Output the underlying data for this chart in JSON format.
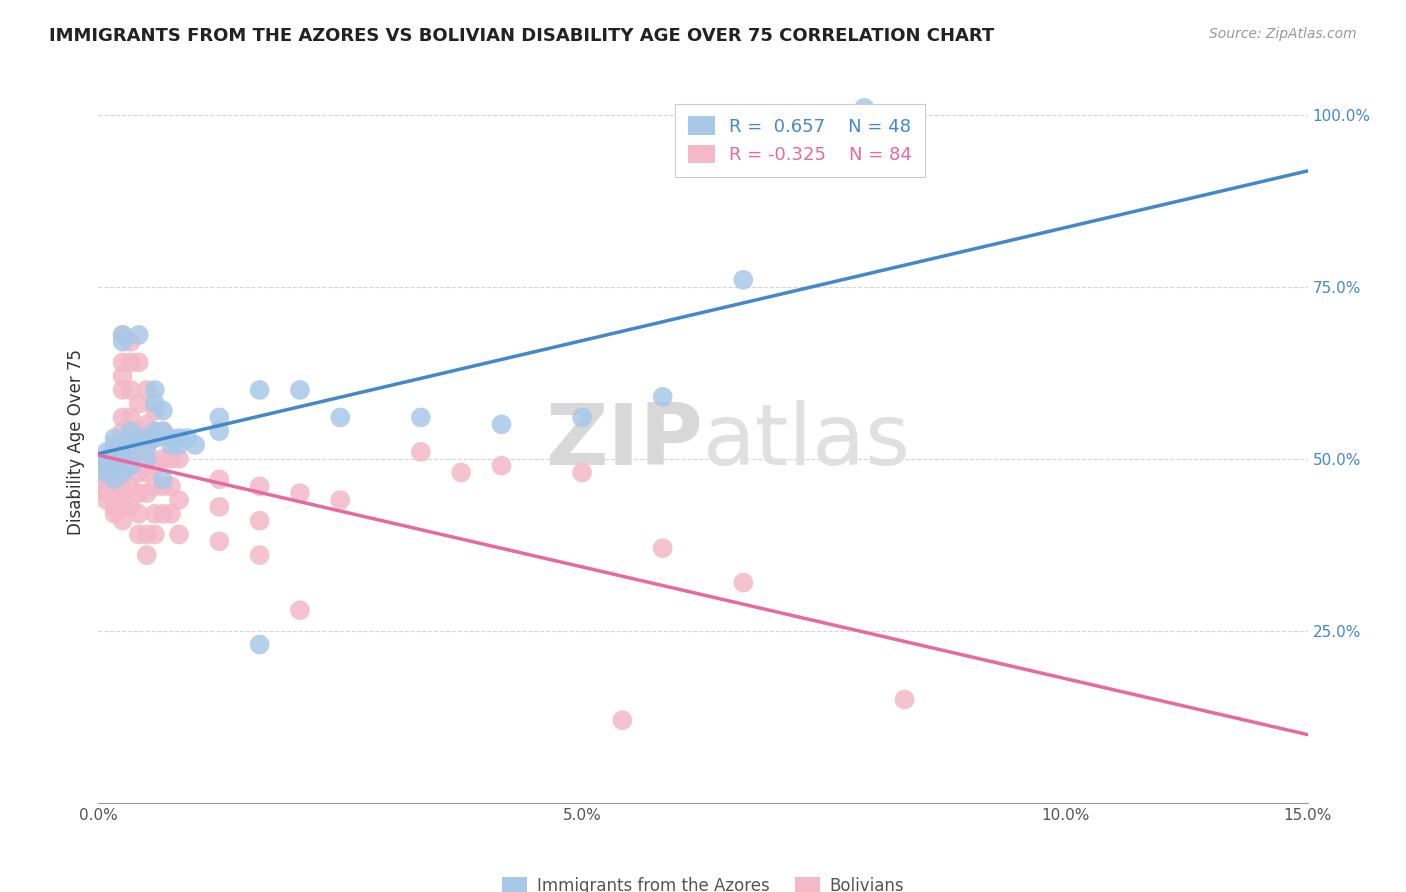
{
  "title": "IMMIGRANTS FROM THE AZORES VS BOLIVIAN DISABILITY AGE OVER 75 CORRELATION CHART",
  "source": "Source: ZipAtlas.com",
  "ylabel": "Disability Age Over 75",
  "legend_label1": "Immigrants from the Azores",
  "legend_label2": "Bolivians",
  "R1": 0.657,
  "N1": 48,
  "R2": -0.325,
  "N2": 84,
  "watermark_zip": "ZIP",
  "watermark_atlas": "atlas",
  "blue_color": "#a8c8e8",
  "pink_color": "#f4b8c8",
  "blue_line_color": "#4488cc",
  "pink_line_color": "#e868a0",
  "blue_scatter": [
    [
      0.001,
      0.5
    ],
    [
      0.001,
      0.51
    ],
    [
      0.001,
      0.49
    ],
    [
      0.001,
      0.48
    ],
    [
      0.002,
      0.52
    ],
    [
      0.002,
      0.53
    ],
    [
      0.002,
      0.5
    ],
    [
      0.002,
      0.49
    ],
    [
      0.002,
      0.47
    ],
    [
      0.003,
      0.52
    ],
    [
      0.003,
      0.51
    ],
    [
      0.003,
      0.68
    ],
    [
      0.003,
      0.67
    ],
    [
      0.003,
      0.48
    ],
    [
      0.004,
      0.54
    ],
    [
      0.004,
      0.53
    ],
    [
      0.004,
      0.51
    ],
    [
      0.004,
      0.49
    ],
    [
      0.005,
      0.68
    ],
    [
      0.005,
      0.53
    ],
    [
      0.006,
      0.53
    ],
    [
      0.006,
      0.52
    ],
    [
      0.006,
      0.5
    ],
    [
      0.007,
      0.6
    ],
    [
      0.007,
      0.58
    ],
    [
      0.007,
      0.54
    ],
    [
      0.007,
      0.53
    ],
    [
      0.008,
      0.57
    ],
    [
      0.008,
      0.54
    ],
    [
      0.008,
      0.47
    ],
    [
      0.009,
      0.53
    ],
    [
      0.009,
      0.52
    ],
    [
      0.01,
      0.53
    ],
    [
      0.01,
      0.52
    ],
    [
      0.011,
      0.53
    ],
    [
      0.012,
      0.52
    ],
    [
      0.015,
      0.56
    ],
    [
      0.015,
      0.54
    ],
    [
      0.02,
      0.6
    ],
    [
      0.025,
      0.6
    ],
    [
      0.03,
      0.56
    ],
    [
      0.04,
      0.56
    ],
    [
      0.05,
      0.55
    ],
    [
      0.06,
      0.56
    ],
    [
      0.07,
      0.59
    ],
    [
      0.08,
      0.76
    ],
    [
      0.02,
      0.23
    ],
    [
      0.095,
      1.01
    ]
  ],
  "pink_scatter": [
    [
      0.001,
      0.5
    ],
    [
      0.001,
      0.49
    ],
    [
      0.001,
      0.48
    ],
    [
      0.001,
      0.47
    ],
    [
      0.001,
      0.46
    ],
    [
      0.001,
      0.45
    ],
    [
      0.001,
      0.44
    ],
    [
      0.002,
      0.52
    ],
    [
      0.002,
      0.51
    ],
    [
      0.002,
      0.5
    ],
    [
      0.002,
      0.49
    ],
    [
      0.002,
      0.47
    ],
    [
      0.002,
      0.45
    ],
    [
      0.002,
      0.44
    ],
    [
      0.002,
      0.43
    ],
    [
      0.002,
      0.42
    ],
    [
      0.003,
      0.68
    ],
    [
      0.003,
      0.64
    ],
    [
      0.003,
      0.62
    ],
    [
      0.003,
      0.6
    ],
    [
      0.003,
      0.56
    ],
    [
      0.003,
      0.54
    ],
    [
      0.003,
      0.51
    ],
    [
      0.003,
      0.49
    ],
    [
      0.003,
      0.47
    ],
    [
      0.003,
      0.45
    ],
    [
      0.003,
      0.43
    ],
    [
      0.003,
      0.41
    ],
    [
      0.004,
      0.67
    ],
    [
      0.004,
      0.64
    ],
    [
      0.004,
      0.6
    ],
    [
      0.004,
      0.56
    ],
    [
      0.004,
      0.52
    ],
    [
      0.004,
      0.49
    ],
    [
      0.004,
      0.46
    ],
    [
      0.004,
      0.43
    ],
    [
      0.005,
      0.64
    ],
    [
      0.005,
      0.58
    ],
    [
      0.005,
      0.54
    ],
    [
      0.005,
      0.51
    ],
    [
      0.005,
      0.48
    ],
    [
      0.005,
      0.45
    ],
    [
      0.005,
      0.42
    ],
    [
      0.005,
      0.39
    ],
    [
      0.006,
      0.6
    ],
    [
      0.006,
      0.55
    ],
    [
      0.006,
      0.51
    ],
    [
      0.006,
      0.48
    ],
    [
      0.006,
      0.45
    ],
    [
      0.006,
      0.39
    ],
    [
      0.006,
      0.36
    ],
    [
      0.007,
      0.57
    ],
    [
      0.007,
      0.53
    ],
    [
      0.007,
      0.49
    ],
    [
      0.007,
      0.46
    ],
    [
      0.007,
      0.42
    ],
    [
      0.007,
      0.39
    ],
    [
      0.008,
      0.54
    ],
    [
      0.008,
      0.5
    ],
    [
      0.008,
      0.46
    ],
    [
      0.008,
      0.42
    ],
    [
      0.009,
      0.5
    ],
    [
      0.009,
      0.46
    ],
    [
      0.009,
      0.42
    ],
    [
      0.01,
      0.5
    ],
    [
      0.01,
      0.44
    ],
    [
      0.01,
      0.39
    ],
    [
      0.015,
      0.47
    ],
    [
      0.015,
      0.43
    ],
    [
      0.015,
      0.38
    ],
    [
      0.02,
      0.46
    ],
    [
      0.02,
      0.41
    ],
    [
      0.02,
      0.36
    ],
    [
      0.025,
      0.45
    ],
    [
      0.025,
      0.28
    ],
    [
      0.03,
      0.44
    ],
    [
      0.04,
      0.51
    ],
    [
      0.05,
      0.49
    ],
    [
      0.06,
      0.48
    ],
    [
      0.07,
      0.37
    ],
    [
      0.08,
      0.32
    ],
    [
      0.1,
      0.15
    ],
    [
      0.065,
      0.12
    ],
    [
      0.045,
      0.48
    ]
  ],
  "xlim": [
    0.0,
    0.15
  ],
  "ylim": [
    0.0,
    1.05
  ],
  "background_color": "#ffffff",
  "grid_color": "#cccccc"
}
